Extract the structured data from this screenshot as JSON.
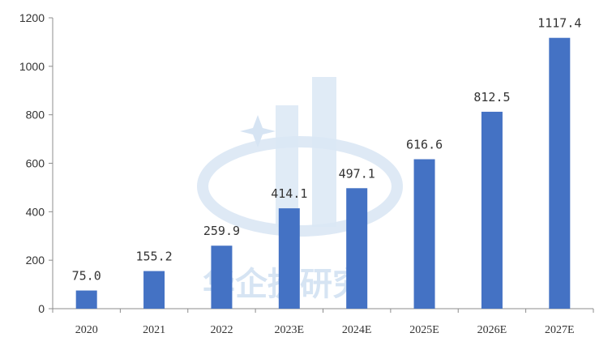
{
  "chart_data": {
    "type": "bar",
    "title": "",
    "xlabel": "",
    "ylabel": "",
    "categories": [
      "2020",
      "2021",
      "2022",
      "2023E",
      "2024E",
      "2025E",
      "2026E",
      "2027E"
    ],
    "values": [
      75.0,
      155.2,
      259.9,
      414.1,
      497.1,
      616.6,
      812.5,
      1117.4
    ],
    "data_labels": [
      "75.0",
      "155.2",
      "259.9",
      "414.1",
      "497.1",
      "616.6",
      "812.5",
      "1117.4"
    ],
    "ylim": [
      0,
      1200
    ],
    "yticks": [
      0,
      200,
      400,
      600,
      800,
      1000,
      1200
    ],
    "grid": false,
    "bar_color": "#4472c4"
  },
  "watermark": {
    "text": "华企捷研究",
    "color": "#d6e4f3"
  }
}
